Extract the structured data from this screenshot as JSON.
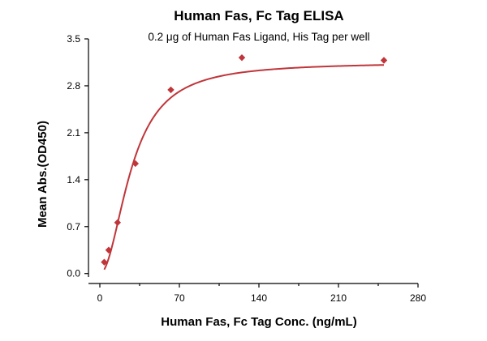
{
  "chart_data": {
    "type": "scatter",
    "title": "Human Fas, Fc Tag ELISA",
    "subtitle": "0.2 μg of Human Fas Ligand, His Tag per well",
    "xlabel": "Human Fas, Fc Tag Conc. (ng/mL)",
    "ylabel": "Mean Abs.(OD450)",
    "xlim": [
      -10,
      280
    ],
    "ylim": [
      -0.1,
      3.5
    ],
    "xticks": [
      0,
      70,
      140,
      210,
      280
    ],
    "yticks": [
      0.0,
      0.7,
      1.4,
      2.1,
      2.8,
      3.5
    ],
    "xtick_labels": [
      "0",
      "70",
      "140",
      "210",
      "280"
    ],
    "ytick_labels": [
      "0.0",
      "0.7",
      "1.4",
      "2.1",
      "2.8",
      "3.5"
    ],
    "grid": false,
    "series": [
      {
        "points": [
          {
            "x": 3.9,
            "y": 0.17
          },
          {
            "x": 7.8,
            "y": 0.35
          },
          {
            "x": 15.6,
            "y": 0.76
          },
          {
            "x": 31.3,
            "y": 1.64
          },
          {
            "x": 62.5,
            "y": 2.74
          },
          {
            "x": 125,
            "y": 3.22
          },
          {
            "x": 250,
            "y": 3.18
          }
        ],
        "fit": {
          "model": "4PL",
          "bottom": 0.0,
          "top": 3.15,
          "ec50": 28,
          "hill": 2.0
        }
      }
    ],
    "colors": {
      "marker": "#c0353a",
      "curve": "#c0353a"
    }
  }
}
